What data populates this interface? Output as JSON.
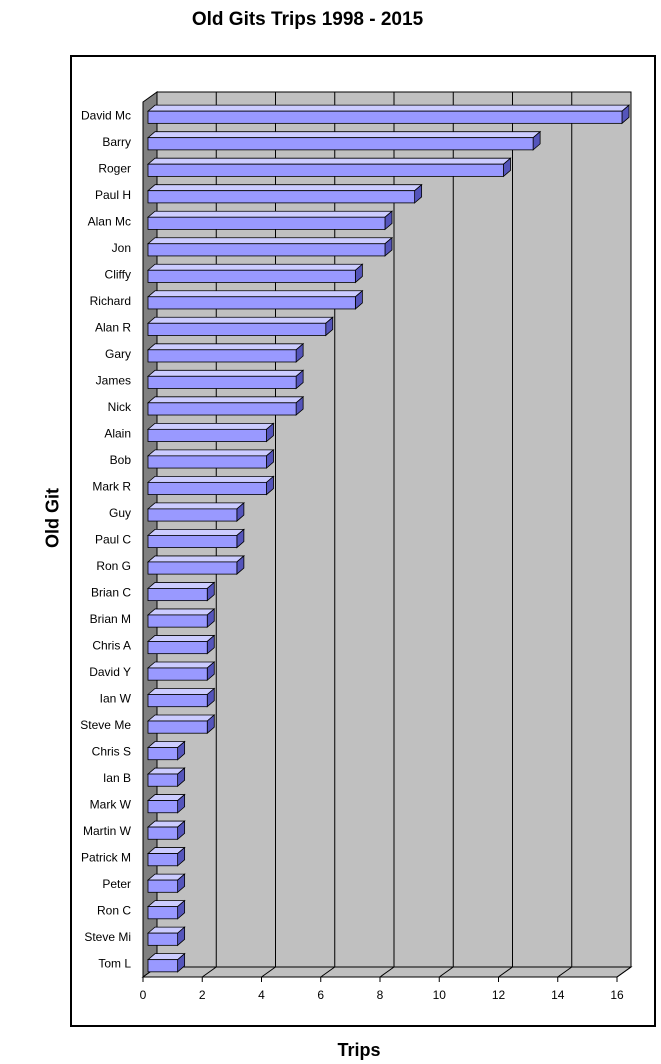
{
  "chart_data": {
    "type": "bar",
    "orientation": "horizontal",
    "title": "Old Gits Trips 1998 - 2015",
    "xlabel": "Trips",
    "ylabel": "Old Git",
    "xlim": [
      0,
      16
    ],
    "xticks": [
      0,
      2,
      4,
      6,
      8,
      10,
      12,
      14,
      16
    ],
    "grid": true,
    "legend": "none",
    "categories": [
      "David Mc",
      "Barry",
      "Roger",
      "Paul H",
      "Alan Mc",
      "Jon",
      "Cliffy",
      "Richard",
      "Alan R",
      "Gary",
      "James",
      "Nick",
      "Alain",
      "Bob",
      "Mark R",
      "Guy",
      "Paul C",
      "Ron G",
      "Brian C",
      "Brian M",
      "Chris A",
      "David Y",
      "Ian W",
      "Steve Me",
      "Chris S",
      "Ian B",
      "Mark W",
      "Martin W",
      "Patrick M",
      "Peter",
      "Ron C",
      "Steve Mi",
      "Tom L"
    ],
    "values": [
      16,
      13,
      12,
      9,
      8,
      8,
      7,
      7,
      6,
      5,
      5,
      5,
      4,
      4,
      4,
      3,
      3,
      3,
      2,
      2,
      2,
      2,
      2,
      2,
      1,
      1,
      1,
      1,
      1,
      1,
      1,
      1,
      1
    ],
    "colors": {
      "bar_face": "#9999ff",
      "bar_top": "#ccccff",
      "bar_side": "#5555bb",
      "plot_back": "#c0c0c0",
      "plot_floor": "#c0c0c0",
      "plot_wall": "#808080",
      "grid": "#000000"
    }
  }
}
